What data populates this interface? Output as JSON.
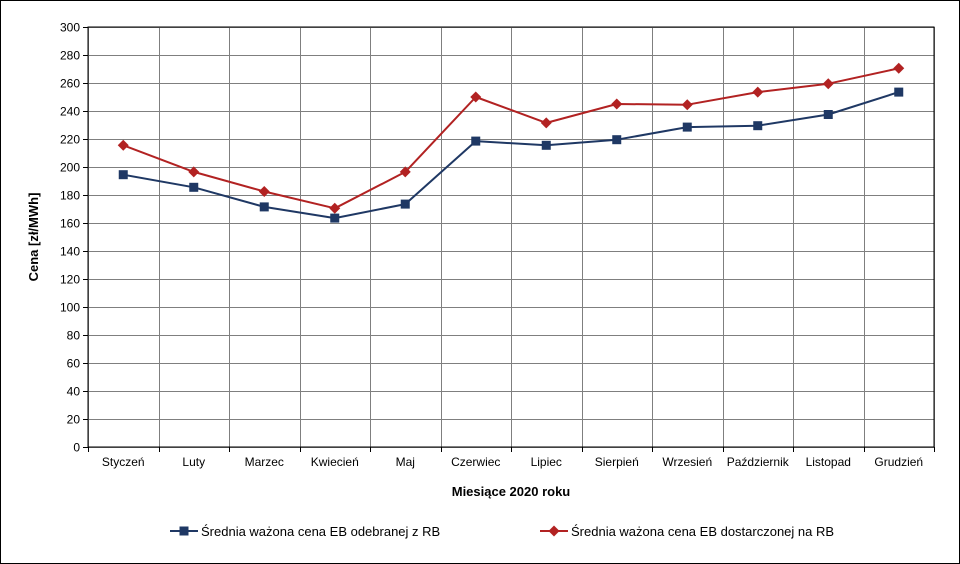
{
  "chart_data": {
    "type": "line",
    "title": "",
    "xlabel": "Miesiące 2020  roku",
    "ylabel": "Cena [zł/MWh]",
    "ylim": [
      0,
      300
    ],
    "ytick_step": 20,
    "grid": true,
    "legend_position": "bottom",
    "categories": [
      "Styczeń",
      "Luty",
      "Marzec",
      "Kwiecień",
      "Maj",
      "Czerwiec",
      "Lipiec",
      "Sierpień",
      "Wrzesień",
      "Październik",
      "Listopad",
      "Grudzień"
    ],
    "series": [
      {
        "name": "Średnia ważona cena EB odebranej z RB",
        "color": "#1f3864",
        "marker": "square",
        "values": [
          194.5,
          185.5,
          171.5,
          163.5,
          173.5,
          218.5,
          215.5,
          219.5,
          228.5,
          229.5,
          237.5,
          253.5
        ]
      },
      {
        "name": "Średnia ważona cena EB dostarczonej na RB",
        "color": "#b22222",
        "marker": "diamond",
        "values": [
          215.5,
          196.5,
          182.5,
          170.5,
          196.5,
          250.0,
          231.5,
          245.0,
          244.5,
          253.5,
          259.5,
          270.5
        ]
      }
    ]
  }
}
